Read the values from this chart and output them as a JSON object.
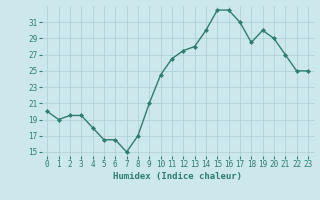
{
  "x": [
    0,
    1,
    2,
    3,
    4,
    5,
    6,
    7,
    8,
    9,
    10,
    11,
    12,
    13,
    14,
    15,
    16,
    17,
    18,
    19,
    20,
    21,
    22,
    23
  ],
  "y": [
    20.0,
    19.0,
    19.5,
    19.5,
    18.0,
    16.5,
    16.5,
    15.0,
    17.0,
    21.0,
    24.5,
    26.5,
    27.5,
    28.0,
    30.0,
    32.5,
    32.5,
    31.0,
    28.5,
    30.0,
    29.0,
    27.0,
    25.0,
    25.0
  ],
  "line_color": "#2e7d6e",
  "marker": "D",
  "marker_size": 2.0,
  "bg_color": "#cce8ec",
  "grid_color": "#aacdd4",
  "xlabel": "Humidex (Indice chaleur)",
  "xlim": [
    -0.5,
    23.5
  ],
  "ylim": [
    14.5,
    33.0
  ],
  "yticks": [
    15,
    17,
    19,
    21,
    23,
    25,
    27,
    29,
    31
  ],
  "xticks": [
    0,
    1,
    2,
    3,
    4,
    5,
    6,
    7,
    8,
    9,
    10,
    11,
    12,
    13,
    14,
    15,
    16,
    17,
    18,
    19,
    20,
    21,
    22,
    23
  ],
  "tick_label_fontsize": 5.5,
  "xlabel_fontsize": 6.5,
  "line_width": 1.0
}
